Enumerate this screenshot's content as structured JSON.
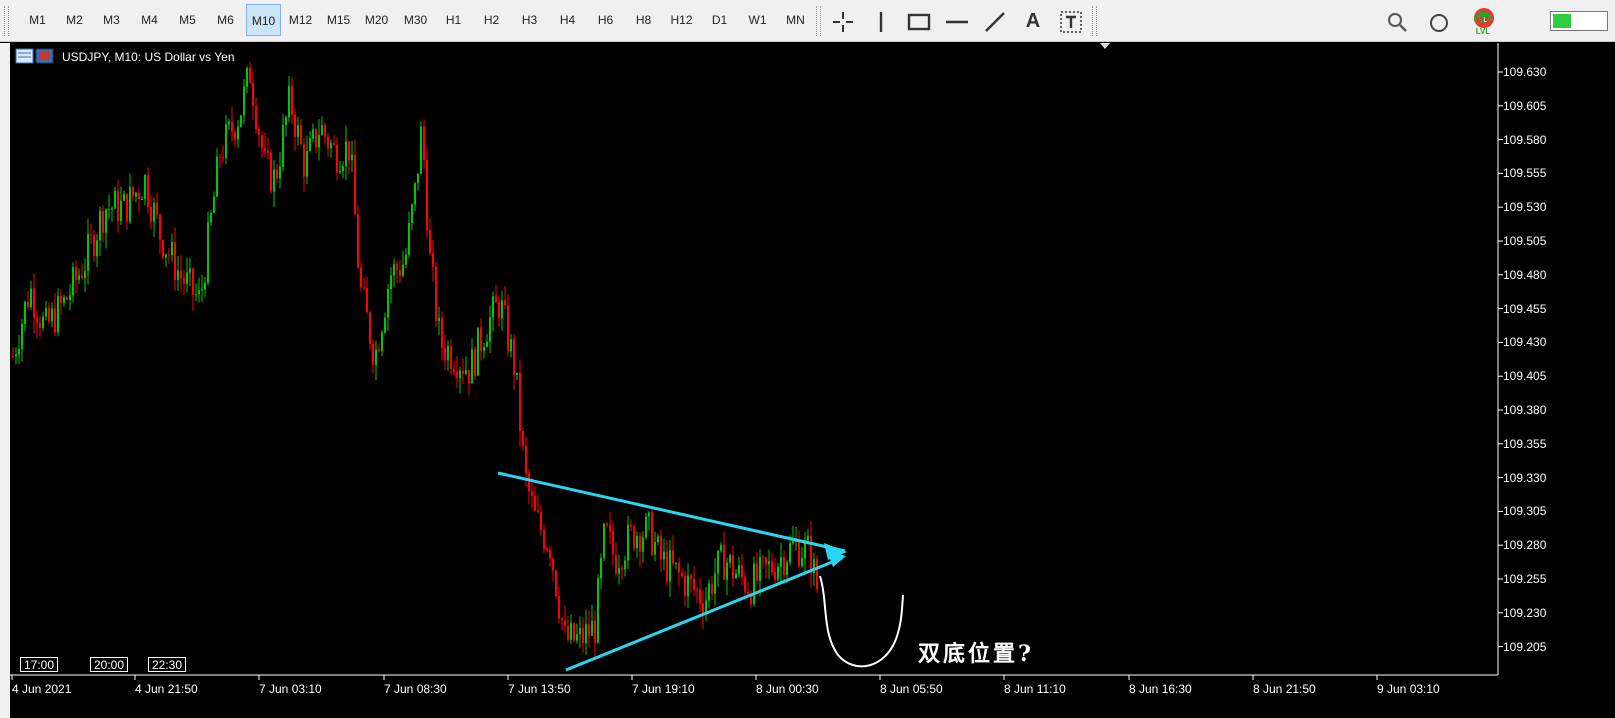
{
  "toolbar": {
    "timeframes": [
      "M1",
      "M2",
      "M3",
      "M4",
      "M5",
      "M6",
      "M10",
      "M12",
      "M15",
      "M20",
      "M30",
      "H1",
      "H2",
      "H3",
      "H4",
      "H6",
      "H8",
      "H12",
      "D1",
      "W1",
      "MN"
    ],
    "active_timeframe": "M10",
    "tools": [
      "crosshair-icon",
      "vertical-line-icon",
      "rectangle-icon",
      "horizontal-line-icon",
      "trendline-icon",
      "text-icon",
      "text-label-icon"
    ],
    "text_tool_label": "A",
    "notifications_count": "1",
    "lvl_label": "LVL",
    "signal_strength": 0.35,
    "accent_color": "#2ecc40"
  },
  "chart": {
    "title": "USDJPY, M10:  US Dollar vs Yen",
    "bull_color": "#00c800",
    "bear_color": "#ff0000",
    "price_axis": [
      "109.630",
      "109.605",
      "109.580",
      "109.555",
      "109.530",
      "109.505",
      "109.480",
      "109.455",
      "109.430",
      "109.405",
      "109.380",
      "109.355",
      "109.330",
      "109.305",
      "109.280",
      "109.255",
      "109.230",
      "109.205"
    ],
    "time_axis": [
      "4 Jun 2021",
      "4 Jun 21:50",
      "7 Jun 03:10",
      "7 Jun 08:30",
      "7 Jun 13:50",
      "7 Jun 19:10",
      "8 Jun 00:30",
      "8 Jun 05:50",
      "8 Jun 11:10",
      "8 Jun 16:30",
      "8 Jun 21:50",
      "9 Jun 03:10"
    ],
    "period_separators": [
      "17:00",
      "20:00",
      "22:30"
    ],
    "annotation_text": "双底位置?",
    "trendline_color": "#29d6f0",
    "key_prices": {
      "open_high": 109.64,
      "triangle_apex": 109.268,
      "low": 109.205
    }
  }
}
